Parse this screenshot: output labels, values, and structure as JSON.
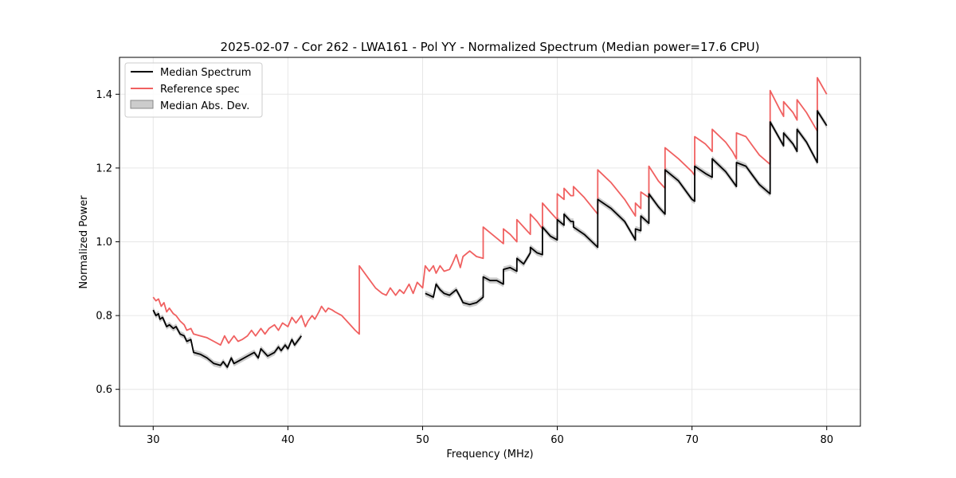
{
  "chart_data": {
    "type": "line",
    "title": "2025-02-07 - Cor 262 - LWA161 - Pol YY - Normalized Spectrum (Median power=17.6 CPU)",
    "xlabel": "Frequency (MHz)",
    "ylabel": "Normalized Power",
    "xlim": [
      27.5,
      82.5
    ],
    "ylim": [
      0.5,
      1.5
    ],
    "xticks": [
      30,
      40,
      50,
      60,
      70,
      80
    ],
    "yticks": [
      0.6,
      0.8,
      1.0,
      1.2,
      1.4
    ],
    "xtick_labels": [
      "30",
      "40",
      "50",
      "60",
      "70",
      "80"
    ],
    "ytick_labels": [
      "0.6",
      "0.8",
      "1.0",
      "1.2",
      "1.4"
    ],
    "grid": true,
    "legend_position": "top-left",
    "legend": [
      "Median Spectrum",
      "Reference spec",
      "Median Abs. Dev."
    ],
    "colors": {
      "median": "#000000",
      "reference": "#f06060",
      "mad_fill": "#aaaaaa",
      "grid": "#e6e6e6"
    },
    "series": [
      {
        "name": "Median Spectrum",
        "segments": [
          {
            "x": [
              30.0,
              30.2,
              30.4,
              30.5,
              30.7,
              31.0,
              31.2,
              31.5,
              31.7,
              32.0,
              32.3,
              32.5,
              32.8,
              33.0,
              33.5,
              34.0,
              34.5,
              35.0,
              35.2,
              35.5,
              35.8,
              36.0,
              36.5,
              37.0,
              37.5,
              37.8,
              38.0,
              38.5,
              39.0,
              39.3,
              39.5,
              39.8,
              40.0,
              40.3,
              40.5,
              41.0
            ],
            "y": [
              0.815,
              0.8,
              0.805,
              0.79,
              0.795,
              0.77,
              0.775,
              0.765,
              0.77,
              0.75,
              0.745,
              0.73,
              0.735,
              0.7,
              0.695,
              0.685,
              0.67,
              0.665,
              0.675,
              0.66,
              0.685,
              0.67,
              0.68,
              0.69,
              0.7,
              0.685,
              0.71,
              0.69,
              0.7,
              0.715,
              0.705,
              0.72,
              0.71,
              0.735,
              0.72,
              0.745
            ]
          },
          {
            "x": [
              50.2,
              50.5,
              50.8,
              51.0,
              51.3,
              51.6,
              52.0,
              52.5,
              52.8,
              53.0,
              53.5,
              54.0,
              54.5,
              54.5,
              55.0,
              55.5,
              56.0,
              56.0,
              56.5,
              57.0,
              57.0,
              57.5,
              58.0,
              58.0,
              58.5,
              58.9,
              58.9,
              59.5,
              60.0,
              60.0,
              60.5,
              60.5,
              61.0,
              61.2,
              61.2,
              62.0,
              63.0,
              63.0,
              64.0,
              65.0,
              65.8,
              65.8,
              66.2,
              66.2,
              66.8,
              66.8,
              67.5,
              68.0,
              68.0,
              69.0,
              70.0,
              70.2,
              70.2,
              71.0,
              71.5,
              71.5,
              72.5,
              73.0,
              73.3,
              73.3,
              74.0,
              74.5,
              75.0,
              75.8,
              75.8,
              76.5,
              76.8,
              76.8,
              77.5,
              77.8,
              77.8,
              78.5,
              79.3,
              79.3,
              80.0
            ],
            "y": [
              0.86,
              0.855,
              0.85,
              0.885,
              0.87,
              0.86,
              0.855,
              0.87,
              0.85,
              0.835,
              0.83,
              0.835,
              0.85,
              0.905,
              0.895,
              0.895,
              0.885,
              0.925,
              0.93,
              0.92,
              0.955,
              0.94,
              0.97,
              0.985,
              0.97,
              0.965,
              1.04,
              1.015,
              1.005,
              1.06,
              1.045,
              1.075,
              1.055,
              1.055,
              1.04,
              1.02,
              0.985,
              1.115,
              1.09,
              1.055,
              1.005,
              1.035,
              1.03,
              1.07,
              1.05,
              1.13,
              1.095,
              1.075,
              1.195,
              1.165,
              1.115,
              1.11,
              1.205,
              1.185,
              1.175,
              1.225,
              1.19,
              1.165,
              1.15,
              1.215,
              1.205,
              1.18,
              1.155,
              1.13,
              1.325,
              1.28,
              1.26,
              1.295,
              1.265,
              1.245,
              1.305,
              1.27,
              1.215,
              1.355,
              1.315
            ]
          }
        ]
      },
      {
        "name": "Reference spec",
        "segments": [
          {
            "x": [
              30.0,
              30.2,
              30.4,
              30.6,
              30.8,
              31.0,
              31.2,
              31.5,
              31.7,
              32.0,
              32.3,
              32.5,
              32.8,
              33.0,
              33.5,
              34.0,
              34.5,
              35.0,
              35.3,
              35.6,
              36.0,
              36.3,
              36.6,
              37.0,
              37.3,
              37.6,
              38.0,
              38.3,
              38.6,
              39.0,
              39.3,
              39.6,
              40.0,
              40.3,
              40.6,
              41.0,
              41.3,
              41.5,
              41.8,
              42.0,
              42.3,
              42.5,
              42.8,
              43.0,
              43.3,
              43.5,
              44.0,
              44.5,
              45.0,
              45.3,
              45.3,
              46.0,
              46.5,
              47.0,
              47.3,
              47.6,
              48.0,
              48.3,
              48.6,
              49.0,
              49.3,
              49.6,
              50.0,
              50.2,
              50.5,
              50.8,
              51.0,
              51.3,
              51.6,
              52.0,
              52.2,
              52.5,
              52.8,
              53.0,
              53.5,
              54.0,
              54.5,
              54.5,
              55.0,
              55.5,
              56.0,
              56.0,
              56.5,
              57.0,
              57.0,
              57.5,
              58.0,
              58.0,
              58.5,
              58.9,
              58.9,
              59.5,
              60.0,
              60.0,
              60.5,
              60.5,
              61.0,
              61.2,
              61.2,
              62.0,
              63.0,
              63.0,
              64.0,
              65.0,
              65.8,
              65.8,
              66.2,
              66.2,
              66.8,
              66.8,
              67.5,
              68.0,
              68.0,
              69.0,
              70.0,
              70.2,
              70.2,
              71.0,
              71.5,
              71.5,
              72.5,
              73.0,
              73.3,
              73.3,
              74.0,
              74.5,
              75.0,
              75.8,
              75.8,
              76.5,
              76.8,
              76.8,
              77.5,
              77.8,
              77.8,
              78.5,
              79.3,
              79.3,
              80.0
            ],
            "y": [
              0.85,
              0.84,
              0.845,
              0.825,
              0.835,
              0.81,
              0.82,
              0.805,
              0.8,
              0.785,
              0.775,
              0.76,
              0.765,
              0.75,
              0.745,
              0.74,
              0.73,
              0.72,
              0.745,
              0.725,
              0.745,
              0.73,
              0.735,
              0.745,
              0.76,
              0.745,
              0.765,
              0.75,
              0.765,
              0.775,
              0.76,
              0.78,
              0.77,
              0.795,
              0.78,
              0.8,
              0.77,
              0.785,
              0.8,
              0.79,
              0.81,
              0.825,
              0.81,
              0.82,
              0.815,
              0.81,
              0.8,
              0.78,
              0.76,
              0.75,
              0.935,
              0.9,
              0.875,
              0.86,
              0.855,
              0.875,
              0.855,
              0.87,
              0.86,
              0.885,
              0.86,
              0.89,
              0.875,
              0.935,
              0.92,
              0.935,
              0.915,
              0.935,
              0.92,
              0.925,
              0.94,
              0.965,
              0.93,
              0.96,
              0.975,
              0.96,
              0.955,
              1.04,
              1.025,
              1.01,
              0.995,
              1.035,
              1.02,
              1.0,
              1.06,
              1.04,
              1.02,
              1.075,
              1.055,
              1.035,
              1.105,
              1.08,
              1.06,
              1.13,
              1.115,
              1.145,
              1.125,
              1.125,
              1.15,
              1.12,
              1.075,
              1.195,
              1.16,
              1.115,
              1.07,
              1.105,
              1.09,
              1.135,
              1.12,
              1.205,
              1.165,
              1.145,
              1.255,
              1.225,
              1.19,
              1.18,
              1.285,
              1.265,
              1.245,
              1.305,
              1.27,
              1.245,
              1.225,
              1.295,
              1.285,
              1.26,
              1.235,
              1.21,
              1.41,
              1.36,
              1.34,
              1.38,
              1.35,
              1.33,
              1.385,
              1.35,
              1.3,
              1.445,
              1.4
            ]
          }
        ]
      }
    ],
    "mad_band_halfwidth": 0.008
  }
}
